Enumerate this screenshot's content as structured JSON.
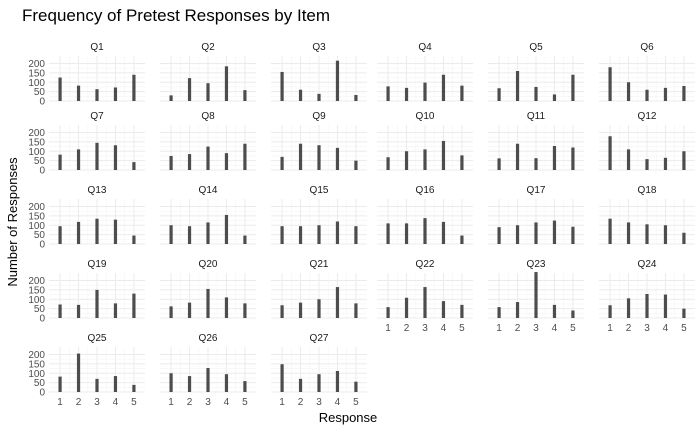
{
  "chart_data": {
    "type": "bar",
    "title": "Frequency of Pretest Responses by Item",
    "xlabel": "Response",
    "ylabel": "Number of Responses",
    "categories": [
      "1",
      "2",
      "3",
      "4",
      "5"
    ],
    "y_ticks": [
      "0",
      "50",
      "100",
      "150",
      "200"
    ],
    "ylim": [
      0,
      240
    ],
    "grid": true,
    "facets": [
      {
        "name": "Q1",
        "values": [
          125,
          82,
          63,
          72,
          140
        ]
      },
      {
        "name": "Q2",
        "values": [
          30,
          122,
          95,
          185,
          58
        ]
      },
      {
        "name": "Q3",
        "values": [
          155,
          60,
          38,
          215,
          32
        ]
      },
      {
        "name": "Q4",
        "values": [
          78,
          70,
          98,
          140,
          82
        ]
      },
      {
        "name": "Q5",
        "values": [
          68,
          160,
          75,
          35,
          140
        ]
      },
      {
        "name": "Q6",
        "values": [
          180,
          100,
          60,
          70,
          80
        ]
      },
      {
        "name": "Q7",
        "values": [
          82,
          110,
          145,
          132,
          42
        ]
      },
      {
        "name": "Q8",
        "values": [
          75,
          85,
          125,
          90,
          140
        ]
      },
      {
        "name": "Q9",
        "values": [
          70,
          140,
          132,
          118,
          50
        ]
      },
      {
        "name": "Q10",
        "values": [
          68,
          100,
          110,
          155,
          78
        ]
      },
      {
        "name": "Q11",
        "values": [
          62,
          140,
          63,
          128,
          120
        ]
      },
      {
        "name": "Q12",
        "values": [
          180,
          110,
          58,
          65,
          100
        ]
      },
      {
        "name": "Q13",
        "values": [
          95,
          118,
          135,
          130,
          45
        ]
      },
      {
        "name": "Q14",
        "values": [
          100,
          95,
          115,
          155,
          45
        ]
      },
      {
        "name": "Q15",
        "values": [
          95,
          95,
          100,
          120,
          95
        ]
      },
      {
        "name": "Q16",
        "values": [
          110,
          110,
          138,
          118,
          45
        ]
      },
      {
        "name": "Q17",
        "values": [
          90,
          100,
          115,
          125,
          92
        ]
      },
      {
        "name": "Q18",
        "values": [
          135,
          115,
          105,
          100,
          60
        ]
      },
      {
        "name": "Q19",
        "values": [
          72,
          70,
          150,
          78,
          130
        ]
      },
      {
        "name": "Q20",
        "values": [
          62,
          82,
          155,
          110,
          78
        ]
      },
      {
        "name": "Q21",
        "values": [
          68,
          82,
          100,
          165,
          78
        ]
      },
      {
        "name": "Q22",
        "values": [
          58,
          108,
          165,
          90,
          70
        ]
      },
      {
        "name": "Q23",
        "values": [
          58,
          85,
          245,
          70,
          40
        ]
      },
      {
        "name": "Q24",
        "values": [
          68,
          105,
          128,
          125,
          50
        ]
      },
      {
        "name": "Q25",
        "values": [
          82,
          205,
          70,
          85,
          38
        ]
      },
      {
        "name": "Q26",
        "values": [
          100,
          85,
          128,
          95,
          58
        ]
      },
      {
        "name": "Q27",
        "values": [
          148,
          70,
          95,
          112,
          55
        ]
      }
    ]
  }
}
